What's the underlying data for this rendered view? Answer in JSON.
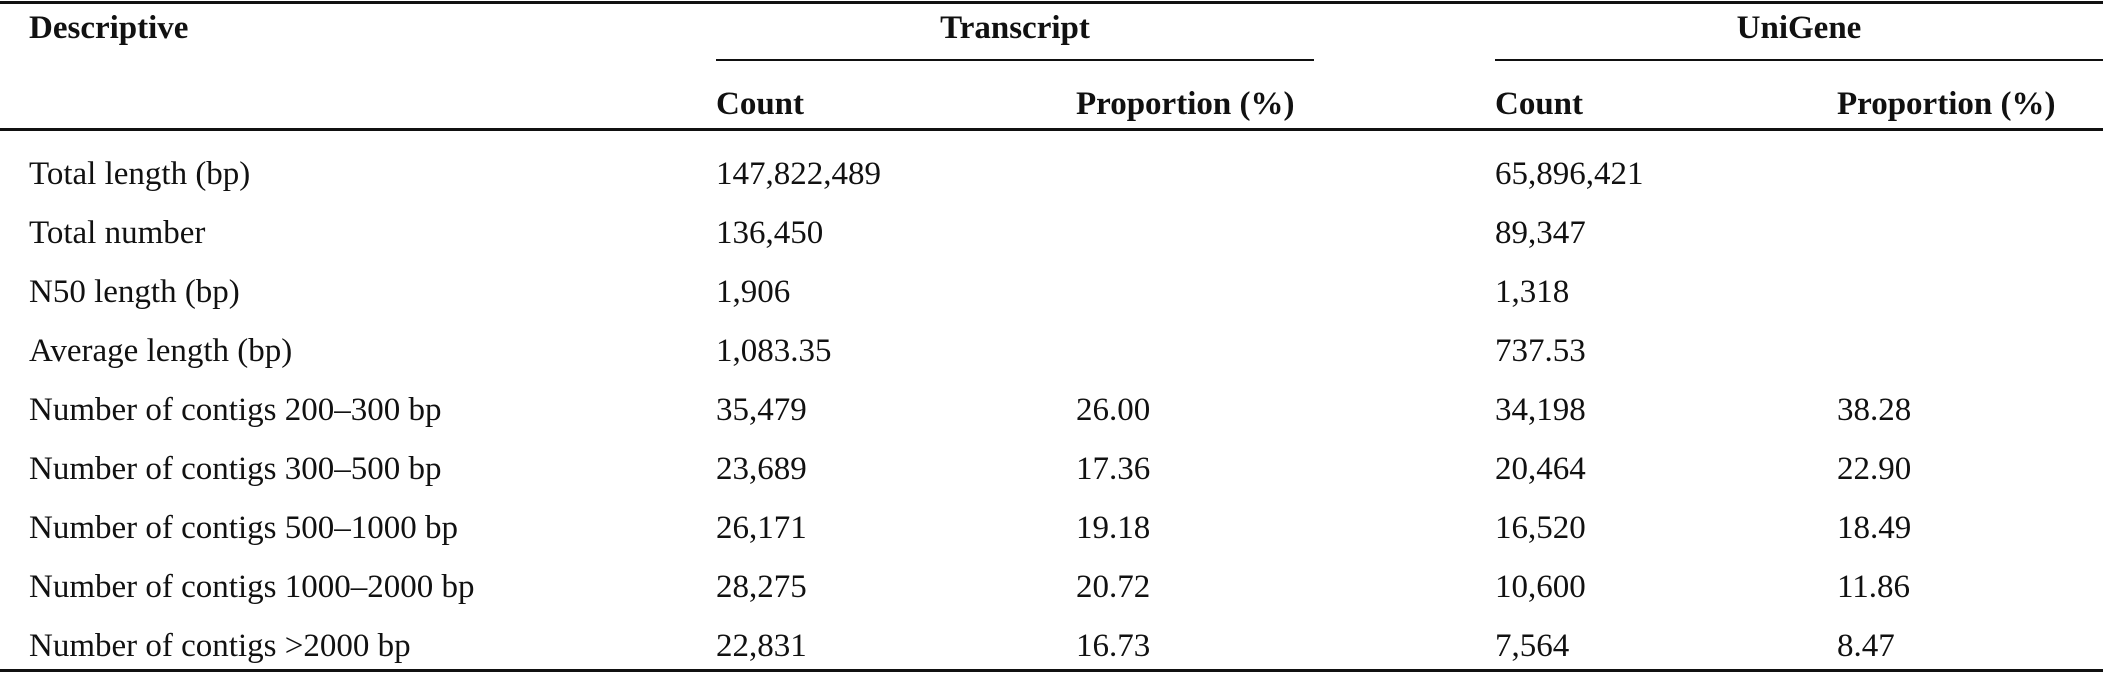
{
  "header": {
    "descriptive": "Descriptive",
    "transcript": "Transcript",
    "unigene": "UniGene",
    "count": "Count",
    "proportion": "Proportion (%)"
  },
  "rows": [
    {
      "label": "Total length (bp)",
      "t_count": "147,822,489",
      "t_prop": "",
      "u_count": "65,896,421",
      "u_prop": ""
    },
    {
      "label": "Total number",
      "t_count": "136,450",
      "t_prop": "",
      "u_count": "89,347",
      "u_prop": ""
    },
    {
      "label": "N50 length (bp)",
      "t_count": "1,906",
      "t_prop": "",
      "u_count": "1,318",
      "u_prop": ""
    },
    {
      "label": "Average length (bp)",
      "t_count": "1,083.35",
      "t_prop": "",
      "u_count": "737.53",
      "u_prop": ""
    },
    {
      "label": "Number of contigs 200–300 bp",
      "t_count": "35,479",
      "t_prop": "26.00",
      "u_count": "34,198",
      "u_prop": "38.28"
    },
    {
      "label": "Number of contigs 300–500 bp",
      "t_count": "23,689",
      "t_prop": "17.36",
      "u_count": "20,464",
      "u_prop": "22.90"
    },
    {
      "label": "Number of contigs 500–1000 bp",
      "t_count": "26,171",
      "t_prop": "19.18",
      "u_count": "16,520",
      "u_prop": "18.49"
    },
    {
      "label": "Number of contigs 1000–2000 bp",
      "t_count": "28,275",
      "t_prop": "20.72",
      "u_count": "10,600",
      "u_prop": "11.86"
    },
    {
      "label": "Number of contigs >2000 bp",
      "t_count": "22,831",
      "t_prop": "16.73",
      "u_count": "7,564",
      "u_prop": "8.47"
    }
  ]
}
